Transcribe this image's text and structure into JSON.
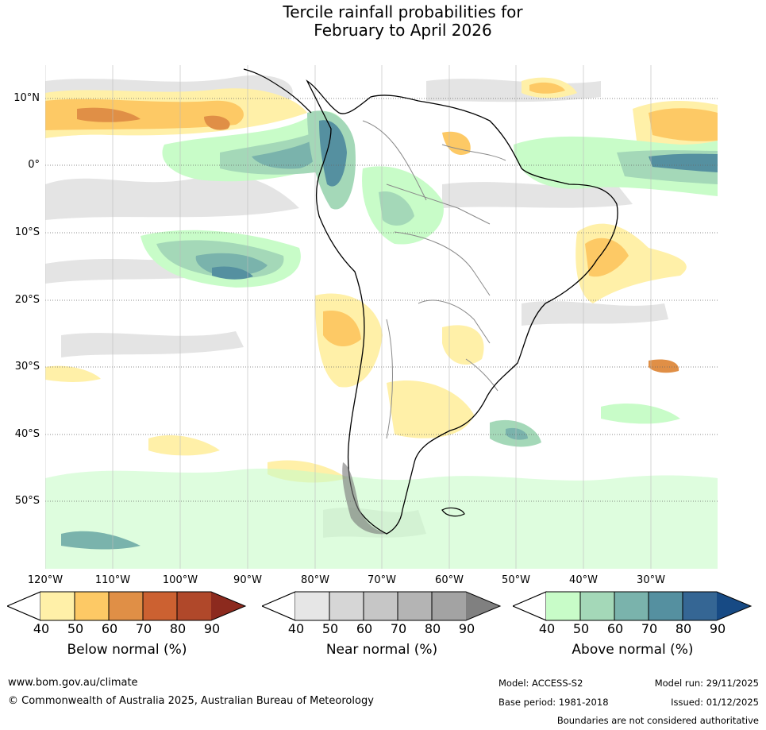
{
  "title": {
    "line1": "Tercile rainfall probabilities for",
    "line2": "February to April 2026"
  },
  "lat_labels": [
    "10°N",
    "0°",
    "10°S",
    "20°S",
    "30°S",
    "40°S",
    "50°S"
  ],
  "lon_labels": [
    "120°W",
    "110°W",
    "100°W",
    "90°W",
    "80°W",
    "70°W",
    "60°W",
    "50°W",
    "40°W",
    "30°W"
  ],
  "legends": {
    "below": {
      "label": "Below normal (%)",
      "ticks": [
        "40",
        "50",
        "60",
        "70",
        "80",
        "90"
      ],
      "colors": [
        "#fff0a8",
        "#fdc965",
        "#e08f46",
        "#cc6131",
        "#b0482a",
        "#8c2a1e"
      ]
    },
    "near": {
      "label": "Near normal (%)",
      "ticks": [
        "40",
        "50",
        "60",
        "70",
        "80",
        "90"
      ],
      "colors": [
        "#e6e6e6",
        "#d6d6d6",
        "#c6c6c6",
        "#b4b4b4",
        "#a3a3a3",
        "#808080"
      ]
    },
    "above": {
      "label": "Above normal (%)",
      "ticks": [
        "40",
        "50",
        "60",
        "70",
        "80",
        "90"
      ],
      "colors": [
        "#c8fcc8",
        "#a4d8b8",
        "#7ab3ac",
        "#5590a0",
        "#356694",
        "#174a84"
      ]
    }
  },
  "footer": {
    "website": "www.bom.gov.au/climate",
    "copyright": "© Commonwealth of Australia 2025, Australian Bureau of Meteorology",
    "model": "Model: ACCESS-S2",
    "model_run": "Model run: 29/11/2025",
    "base_period": "Base period: 1981-2018",
    "issued": "Issued: 01/12/2025",
    "disclaimer": "Boundaries are not considered authoritative"
  }
}
